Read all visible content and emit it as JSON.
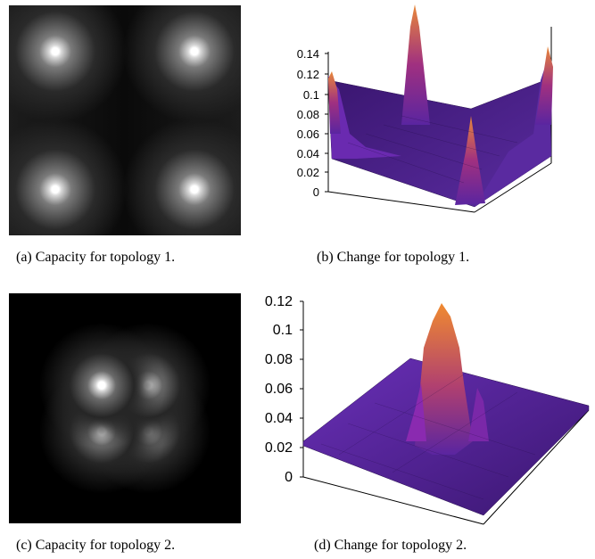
{
  "figure": {
    "panel_a": {
      "caption": "(a) Capacity for topology 1."
    },
    "panel_b": {
      "caption": "(b) Change for topology 1.",
      "chart_data": {
        "type": "surface",
        "z_ticks": [
          "0",
          "0.02",
          "0.04",
          "0.06",
          "0.08",
          "0.1",
          "0.12",
          "0.14"
        ],
        "zlim": [
          0,
          0.14
        ],
        "colors": {
          "low": "#3a1a7a",
          "mid": "#8a2cc0",
          "high": "#e07a30"
        }
      }
    },
    "panel_c": {
      "caption": "(c) Capacity for topology 2."
    },
    "panel_d": {
      "caption": "(d) Change for topology 2.",
      "chart_data": {
        "type": "surface",
        "z_ticks": [
          "0",
          "0.02",
          "0.04",
          "0.06",
          "0.08",
          "0.1",
          "0.12"
        ],
        "zlim": [
          0,
          0.12
        ],
        "colors": {
          "low": "#3a1a7a",
          "mid": "#8a2cc0",
          "high": "#e07a30"
        }
      }
    }
  }
}
